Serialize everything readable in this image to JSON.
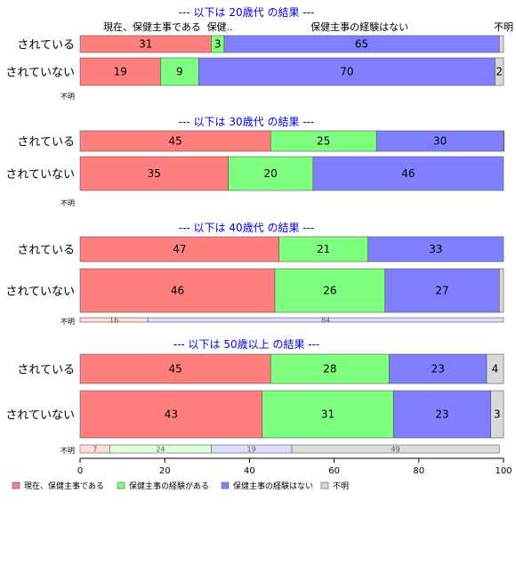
{
  "chart_data": {
    "type": "bar",
    "stacked": true,
    "orientation": "horizontal",
    "xlim": [
      0,
      100
    ],
    "x_ticks": [
      "0",
      "20",
      "40",
      "60",
      "80",
      "100"
    ],
    "grid": false,
    "legend_position": "bottom",
    "series": [
      {
        "name": "現在、保健主事である",
        "color": "#ff7f7f"
      },
      {
        "name": "保健主事の経験がある",
        "color": "#7fff7f"
      },
      {
        "name": "保健主事の経験はない",
        "color": "#7f7fff"
      },
      {
        "name": "不明",
        "color": "#d9d9d9"
      }
    ],
    "top_category_labels": [
      {
        "text": "現在、保健主事である",
        "at": 17
      },
      {
        "text": "保健..",
        "at": 33
      },
      {
        "text": "保健主事の経験はない",
        "at": 66
      },
      {
        "text": "不明",
        "at": 100
      }
    ],
    "panels": [
      {
        "title": "--- 以下は 20歳代 の結果 ---",
        "rows": [
          {
            "label": "されている",
            "values": [
              31,
              3,
              65,
              1
            ],
            "labels": [
              "31",
              "3",
              "65",
              ""
            ]
          },
          {
            "label": "されていない",
            "values": [
              19,
              9,
              70,
              2
            ],
            "labels": [
              "19",
              "9",
              "70",
              "2"
            ]
          },
          {
            "label": "不明",
            "small": true,
            "values": [],
            "labels": []
          }
        ]
      },
      {
        "title": "--- 以下は 30歳代 の結果 ---",
        "rows": [
          {
            "label": "されている",
            "values": [
              45,
              25,
              30,
              0.5
            ],
            "labels": [
              "45",
              "25",
              "30",
              ""
            ]
          },
          {
            "label": "されていない",
            "values": [
              35,
              20,
              46,
              0
            ],
            "labels": [
              "35",
              "20",
              "46",
              ""
            ]
          },
          {
            "label": "不明",
            "small": true,
            "values": [],
            "labels": []
          }
        ]
      },
      {
        "title": "--- 以下は 40歳代 の結果 ---",
        "rows": [
          {
            "label": "されている",
            "values": [
              47,
              21,
              33,
              0
            ],
            "labels": [
              "47",
              "21",
              "33",
              ""
            ]
          },
          {
            "label": "されていない",
            "values": [
              46,
              26,
              27,
              1
            ],
            "labels": [
              "46",
              "26",
              "27",
              ""
            ]
          },
          {
            "label": "不明",
            "small": true,
            "values": [
              16,
              0,
              84,
              0
            ],
            "labels": [
              "16",
              "",
              "84",
              ""
            ]
          }
        ]
      },
      {
        "title": "--- 以下は 50歳以上 の結果 ---",
        "rows": [
          {
            "label": "されている",
            "values": [
              45,
              28,
              23,
              4
            ],
            "labels": [
              "45",
              "28",
              "23",
              "4"
            ]
          },
          {
            "label": "されていない",
            "values": [
              43,
              31,
              23,
              3
            ],
            "labels": [
              "43",
              "31",
              "23",
              "3"
            ]
          },
          {
            "label": "不明",
            "small": true,
            "values": [
              7,
              24,
              19,
              49
            ],
            "labels": [
              "7",
              "24",
              "19",
              "49"
            ]
          }
        ]
      }
    ]
  },
  "colors": {
    "title": "#0000ee",
    "faint": [
      "#ffdddd",
      "#ddffdd",
      "#ddddff",
      "#dddddd"
    ]
  }
}
